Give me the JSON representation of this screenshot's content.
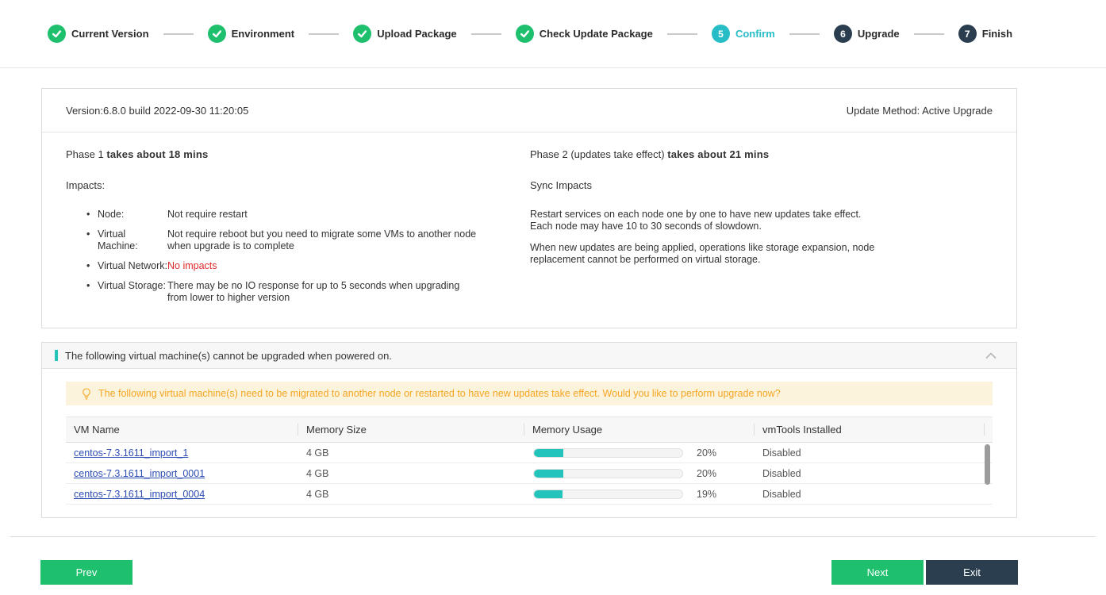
{
  "stepper": {
    "steps": [
      {
        "label": "Current Version",
        "state": "done",
        "icon": "check-icon"
      },
      {
        "label": "Environment",
        "state": "done",
        "icon": "check-icon"
      },
      {
        "label": "Upload Package",
        "state": "done",
        "icon": "check-icon"
      },
      {
        "label": "Check Update Package",
        "state": "done",
        "icon": "check-icon"
      },
      {
        "label": "Confirm",
        "state": "current",
        "number": "5"
      },
      {
        "label": "Upgrade",
        "state": "upcoming",
        "number": "6"
      },
      {
        "label": "Finish",
        "state": "upcoming",
        "number": "7"
      }
    ]
  },
  "version_bar": {
    "version": "Version:6.8.0 build 2022-09-30 11:20:05",
    "update_method": "Update Method: Active Upgrade"
  },
  "phase1": {
    "title_prefix": "Phase 1 ",
    "title_bold": "takes about 18 mins",
    "impacts_label": "Impacts:",
    "items": [
      {
        "label": "Node:",
        "text": "Not require restart",
        "red": false
      },
      {
        "label": "Virtual Machine:",
        "text": "Not require reboot but you need to migrate some VMs to another node when upgrade is to complete",
        "red": false
      },
      {
        "label": "Virtual Network:",
        "text": "No impacts",
        "red": true
      },
      {
        "label": "Virtual Storage:",
        "text": "There may be no IO response for up to 5 seconds when upgrading from lower to higher version",
        "red": false
      }
    ]
  },
  "phase2": {
    "title_prefix": "Phase 2 (updates take effect) ",
    "title_bold": "takes about 21 mins",
    "sync_label": "Sync Impacts",
    "paragraphs": [
      "Restart services on each node one by one to have new updates take effect. Each node may have 10 to 30 seconds of slowdown.",
      "When new updates are being applied, operations like storage expansion, node replacement cannot be performed on virtual storage."
    ]
  },
  "vm_section": {
    "header": "The following virtual machine(s) cannot be upgraded when powered on.",
    "header_icon": "chevron-up-icon",
    "notice_icon": "bulb-icon",
    "notice": "The following virtual machine(s) need to be migrated to another node or restarted to have new updates take effect. Would you like to perform upgrade now?",
    "table": {
      "columns": [
        "VM Name",
        "Memory Size",
        "Memory Usage",
        "vmTools Installed"
      ],
      "rows": [
        {
          "name": "centos-7.3.1611_import_1",
          "memory": "4 GB",
          "usage_pct": 20,
          "usage_label": "20%",
          "vmtools": "Disabled"
        },
        {
          "name": "centos-7.3.1611_import_0001",
          "memory": "4 GB",
          "usage_pct": 20,
          "usage_label": "20%",
          "vmtools": "Disabled"
        },
        {
          "name": "centos-7.3.1611_import_0004",
          "memory": "4 GB",
          "usage_pct": 19,
          "usage_label": "19%",
          "vmtools": "Disabled"
        }
      ]
    }
  },
  "footer": {
    "prev_label": "Prev",
    "next_label": "Next",
    "exit_label": "Exit"
  },
  "colors": {
    "green": "#1ec06e",
    "teal": "#26bdc7",
    "dark": "#2b3e50",
    "orange": "#f5a623",
    "link": "#2d4db3",
    "red": "#e02b2b",
    "bar": "#23c4bb"
  }
}
